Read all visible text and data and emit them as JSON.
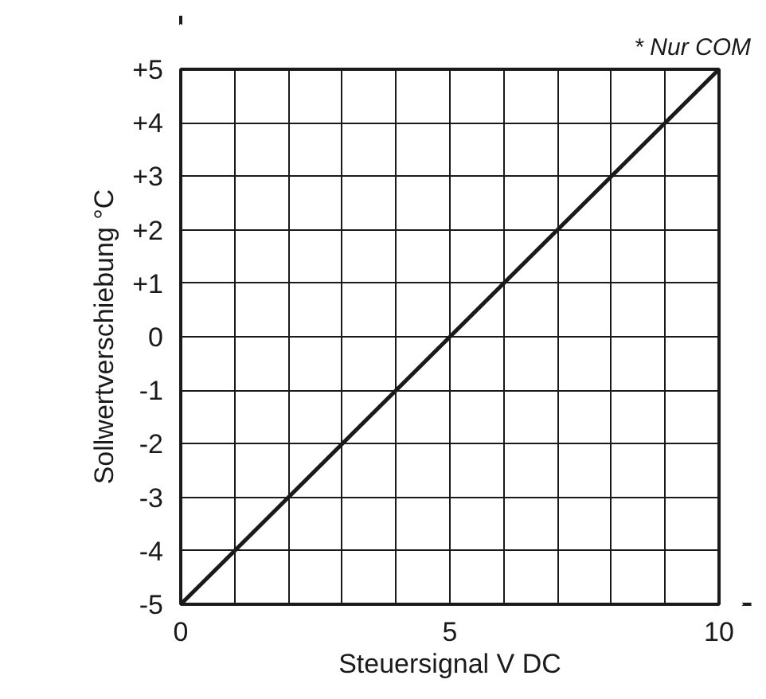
{
  "chart_data": {
    "type": "line",
    "xlabel": "Steuersignal V DC",
    "ylabel": "Sollwertverschiebung °C",
    "annotations": [
      "* Nur COM"
    ],
    "x": [
      0,
      10
    ],
    "series": [
      {
        "color": "#1a1a1a",
        "values": [
          -5,
          5
        ]
      }
    ],
    "xlim": [
      0,
      10
    ],
    "ylim": [
      -5,
      5
    ],
    "xticks": [
      0,
      {
        "value": 1,
        "label": null
      },
      {
        "value": 2,
        "label": null
      },
      {
        "value": 3,
        "label": null
      },
      {
        "value": 4,
        "label": null
      },
      5,
      {
        "value": 6,
        "label": null
      },
      {
        "value": 7,
        "label": null
      },
      {
        "value": 8,
        "label": null
      },
      {
        "value": 9,
        "label": null
      },
      10
    ],
    "yticks": [
      -5,
      -4,
      -3,
      -2,
      -1,
      0,
      {
        "value": 1,
        "label": "+1"
      },
      {
        "value": 2,
        "label": "+2"
      },
      {
        "value": 3,
        "label": "+3"
      },
      {
        "value": 4,
        "label": "+4"
      },
      {
        "value": 5,
        "label": "+5"
      }
    ],
    "grid": true,
    "marker": "none",
    "line_style": "solid"
  }
}
